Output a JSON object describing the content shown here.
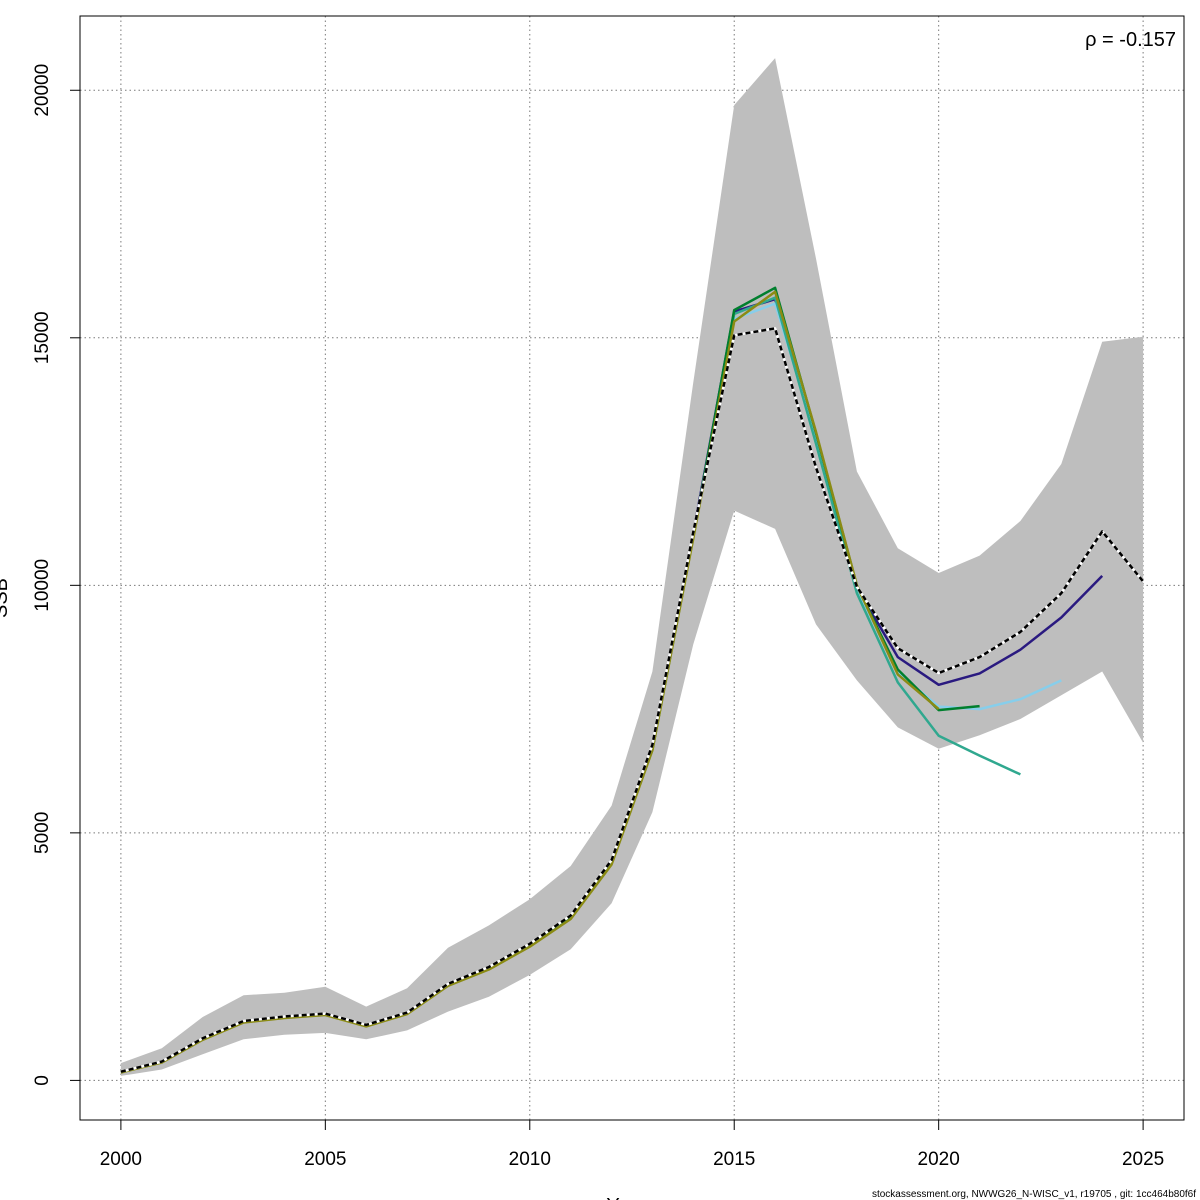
{
  "chart_data": {
    "type": "line",
    "xlabel": "Y",
    "ylabel": "SSB",
    "xlim": [
      1999,
      2026
    ],
    "ylim": [
      -800,
      21500
    ],
    "x_ticks": [
      "2000",
      "2005",
      "2010",
      "2015",
      "2020",
      "2025"
    ],
    "y_ticks": [
      "0",
      "5000",
      "10000",
      "15000",
      "20000"
    ],
    "grid": true,
    "annotation": "ρ = -0.157",
    "band": {
      "x": [
        2000,
        2001,
        2002,
        2003,
        2004,
        2005,
        2006,
        2007,
        2008,
        2009,
        2010,
        2011,
        2012,
        2013,
        2014,
        2015,
        2016,
        2017,
        2018,
        2019,
        2020,
        2021,
        2022,
        2023,
        2024,
        2025
      ],
      "upper": [
        350,
        650,
        1280,
        1720,
        1770,
        1890,
        1490,
        1860,
        2680,
        3130,
        3660,
        4330,
        5550,
        8260,
        14100,
        19700,
        20650,
        16600,
        12300,
        10750,
        10250,
        10600,
        11300,
        12450,
        14920,
        15020
      ],
      "lower": [
        90,
        220,
        530,
        830,
        920,
        960,
        830,
        1010,
        1390,
        1690,
        2130,
        2650,
        3580,
        5420,
        8810,
        11510,
        11140,
        9210,
        8080,
        7130,
        6700,
        6970,
        7300,
        7780,
        8260,
        6820
      ],
      "color": "#bebebe"
    },
    "series": [
      {
        "color": "#000000",
        "dash": true,
        "x": [
          2000,
          2001,
          2002,
          2003,
          2004,
          2005,
          2006,
          2007,
          2008,
          2009,
          2010,
          2011,
          2012,
          2013,
          2014,
          2015,
          2016,
          2017,
          2018,
          2019,
          2020,
          2021,
          2022,
          2023,
          2024,
          2025
        ],
        "values": [
          175,
          380,
          850,
          1200,
          1290,
          1350,
          1120,
          1370,
          1950,
          2290,
          2760,
          3330,
          4450,
          6780,
          11080,
          15050,
          15190,
          12380,
          9970,
          8730,
          8230,
          8550,
          9060,
          9840,
          11090,
          10080
        ]
      },
      {
        "color": "#2a1a80",
        "x": [
          2000,
          2001,
          2002,
          2003,
          2004,
          2005,
          2006,
          2007,
          2008,
          2009,
          2010,
          2011,
          2012,
          2013,
          2014,
          2015,
          2016,
          2017,
          2018,
          2019,
          2020,
          2021,
          2022,
          2023,
          2024
        ],
        "values": [
          170,
          375,
          845,
          1195,
          1285,
          1345,
          1115,
          1365,
          1945,
          2285,
          2750,
          3320,
          4430,
          6750,
          11050,
          15530,
          15780,
          12950,
          9960,
          8550,
          7990,
          8220,
          8700,
          9350,
          10190
        ]
      },
      {
        "color": "#87ceeb",
        "x": [
          2000,
          2001,
          2002,
          2003,
          2004,
          2005,
          2006,
          2007,
          2008,
          2009,
          2010,
          2011,
          2012,
          2013,
          2014,
          2015,
          2016,
          2017,
          2018,
          2019,
          2020,
          2021,
          2022,
          2023
        ],
        "values": [
          168,
          372,
          840,
          1190,
          1280,
          1340,
          1110,
          1360,
          1940,
          2280,
          2745,
          3310,
          4410,
          6710,
          11010,
          15380,
          15690,
          13000,
          9940,
          8230,
          7550,
          7500,
          7700,
          8080
        ]
      },
      {
        "color": "#30a88f",
        "x": [
          2000,
          2001,
          2002,
          2003,
          2004,
          2005,
          2006,
          2007,
          2008,
          2009,
          2010,
          2011,
          2012,
          2013,
          2014,
          2015,
          2016,
          2017,
          2018,
          2019,
          2020,
          2021,
          2022
        ],
        "values": [
          166,
          370,
          835,
          1185,
          1275,
          1335,
          1105,
          1355,
          1935,
          2275,
          2740,
          3300,
          4400,
          6690,
          10990,
          15480,
          15810,
          12860,
          9840,
          8040,
          6960,
          6560,
          6180
        ]
      },
      {
        "color": "#007f2e",
        "x": [
          2000,
          2001,
          2002,
          2003,
          2004,
          2005,
          2006,
          2007,
          2008,
          2009,
          2010,
          2011,
          2012,
          2013,
          2014,
          2015,
          2016,
          2017,
          2018,
          2019,
          2020,
          2021
        ],
        "values": [
          165,
          368,
          830,
          1180,
          1270,
          1330,
          1100,
          1350,
          1930,
          2270,
          2735,
          3295,
          4390,
          6680,
          10980,
          15560,
          16010,
          13070,
          9990,
          8300,
          7480,
          7560
        ]
      },
      {
        "color": "#8b8b14",
        "x": [
          2000,
          2001,
          2002,
          2003,
          2004,
          2005,
          2006,
          2007,
          2008,
          2009,
          2010,
          2011,
          2012,
          2013,
          2014,
          2015,
          2016,
          2017,
          2018,
          2019,
          2020
        ],
        "values": [
          160,
          362,
          820,
          1170,
          1260,
          1320,
          1090,
          1340,
          1910,
          2240,
          2700,
          3260,
          4360,
          6670,
          10950,
          15330,
          15930,
          13100,
          10000,
          8200,
          7500
        ]
      }
    ]
  },
  "footer": "stockassessment.org, NWWG26_N-WISC_v1, r19705 , git: 1cc464b80f6f"
}
